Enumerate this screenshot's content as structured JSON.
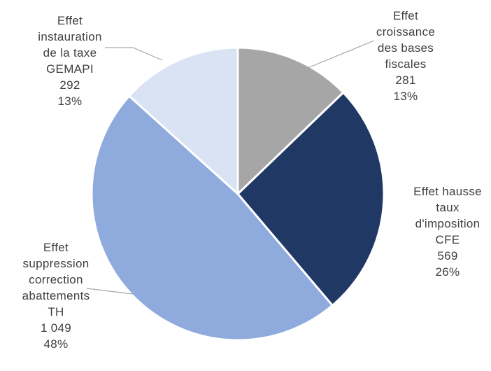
{
  "chart_data": {
    "type": "pie",
    "title": "",
    "slices": [
      {
        "label_lines": [
          "Effet",
          "croissance",
          "des bases",
          "fiscales"
        ],
        "value": 281,
        "value_text": "281",
        "percent_text": "13%",
        "color": "#a6a6a6"
      },
      {
        "label_lines": [
          "Effet hausse",
          "taux",
          "d'imposition",
          "CFE"
        ],
        "value": 569,
        "value_text": "569",
        "percent_text": "26%",
        "color": "#203864"
      },
      {
        "label_lines": [
          "Effet",
          "suppression",
          "correction",
          "abattements",
          "TH"
        ],
        "value": 1049,
        "value_text": "1 049",
        "percent_text": "48%",
        "color": "#8faadc"
      },
      {
        "label_lines": [
          "Effet",
          "instauration",
          "de la taxe",
          "GEMAPI"
        ],
        "value": 292,
        "value_text": "292",
        "percent_text": "13%",
        "color": "#dae3f3"
      }
    ],
    "legend": "none"
  }
}
